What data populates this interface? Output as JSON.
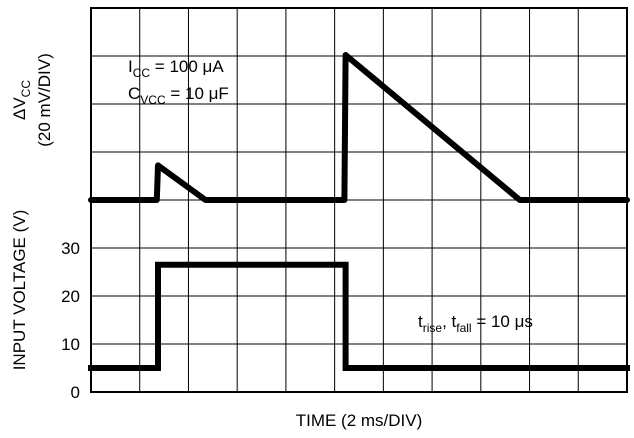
{
  "chart_data": [
    {
      "type": "line",
      "panel": "top",
      "ylabel": "ΔV",
      "ylabel_sub": "CC",
      "ylabel_units": "(20 mV/DIV)",
      "annotations": [
        {
          "main": "I",
          "sub": "CC",
          "rest": " = 100 μA"
        },
        {
          "main": "C",
          "sub": "VCC",
          "rest": " = 10 μF"
        }
      ],
      "x_unit": "ms",
      "y_unit": "div",
      "series": [
        {
          "x": [
            0,
            2.7,
            2.75,
            4.7,
            10.0,
            10.4,
            10.45,
            17.6,
            22
          ],
          "y": [
            0,
            0,
            0.72,
            0,
            0,
            0,
            3.02,
            0,
            0
          ]
        }
      ]
    },
    {
      "type": "line",
      "panel": "bottom",
      "ylabel": "INPUT VOLTAGE (V)",
      "xlabel": "TIME (2 ms/DIV)",
      "yticks": [
        0,
        10,
        20,
        30
      ],
      "ylim": [
        0,
        33
      ],
      "annotation": {
        "t1": "t",
        "s1": "rise",
        "mid": ", t",
        "s2": "fall",
        "rest": " = 10 μs"
      },
      "x_unit": "ms",
      "series": [
        {
          "x": [
            0,
            2.75,
            2.75,
            10.45,
            10.45,
            22
          ],
          "y": [
            5,
            5,
            26.5,
            26.5,
            5,
            5
          ]
        }
      ]
    }
  ]
}
